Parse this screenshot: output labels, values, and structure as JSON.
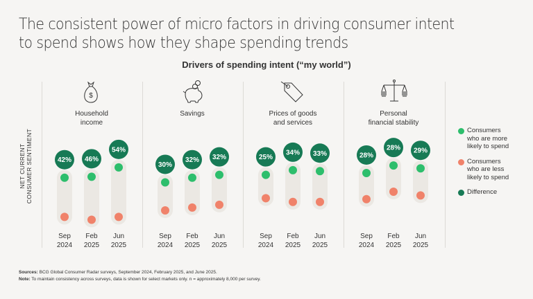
{
  "title": "The consistent power of micro factors in driving consumer intent to spend shows how they shape spending trends",
  "chart_data": {
    "type": "scatter",
    "subtitle": "Drivers of spending intent (“my world”)",
    "ylabel": "NET CURRENT CONSUMER SENTIMENT",
    "ylabel_lines": [
      "NET CURRENT",
      "CONSUMER SENTIMENT"
    ],
    "y_axis_note": "Unlabeled axis; dot levels are estimated relative positions (0 = bottom, 1 = top of plot area)",
    "x_ticks": [
      {
        "line1": "Sep",
        "line2": "2024"
      },
      {
        "line1": "Feb",
        "line2": "2025"
      },
      {
        "line1": "Jun",
        "line2": "2025"
      }
    ],
    "groups": [
      {
        "name": "Household income",
        "name_lines": [
          "Household",
          "income"
        ],
        "icon": "money-bag-icon",
        "more_likely_level": [
          0.58,
          0.59,
          0.69
        ],
        "less_likely_level": [
          0.16,
          0.13,
          0.16
        ],
        "difference": [
          "42%",
          "46%",
          "54%"
        ]
      },
      {
        "name": "Savings",
        "name_lines": [
          "Savings",
          ""
        ],
        "icon": "piggy-bank-icon",
        "more_likely_level": [
          0.53,
          0.58,
          0.61
        ],
        "less_likely_level": [
          0.23,
          0.26,
          0.29
        ],
        "difference": [
          "30%",
          "32%",
          "32%"
        ]
      },
      {
        "name": "Prices of goods and services",
        "name_lines": [
          "Prices of goods",
          "and services"
        ],
        "icon": "price-tag-icon",
        "more_likely_level": [
          0.61,
          0.66,
          0.65
        ],
        "less_likely_level": [
          0.36,
          0.32,
          0.32
        ],
        "difference": [
          "25%",
          "34%",
          "33%"
        ]
      },
      {
        "name": "Personal financial stability",
        "name_lines": [
          "Personal",
          "financial stability"
        ],
        "icon": "balance-scale-icon",
        "more_likely_level": [
          0.63,
          0.71,
          0.68
        ],
        "less_likely_level": [
          0.35,
          0.43,
          0.39
        ],
        "difference": [
          "28%",
          "28%",
          "29%"
        ]
      }
    ],
    "legend": [
      {
        "label_lines": [
          "Consumers",
          "who are more",
          "likely to spend"
        ],
        "color": "#2dbe6c"
      },
      {
        "label_lines": [
          "Consumers",
          "who are less",
          "likely to spend"
        ],
        "color": "#f0826a"
      },
      {
        "label_lines": [
          "Difference"
        ],
        "color": "#177a55"
      }
    ],
    "legend_position": "right",
    "colors": {
      "more": "#2dbe6c",
      "less": "#f0826a",
      "difference": "#177a55",
      "pill": "#ebe8e3"
    }
  },
  "footer": {
    "sources_label": "Sources:",
    "sources_text": " BCG Global Consumer Radar surveys, September 2024, February 2025, and June 2025.",
    "note_label": "Note:",
    "note_text": " To maintain consistency across surveys, data is shown for select markets only. n = approximately 8,000 per survey."
  }
}
